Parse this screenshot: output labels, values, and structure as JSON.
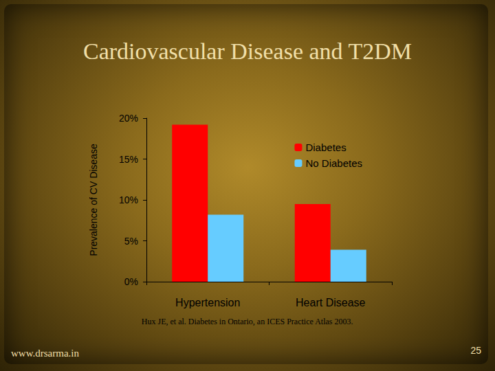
{
  "chart_data": {
    "type": "bar",
    "title": "Cardiovascular Disease and T2DM",
    "ylabel": "Prevalence of CV Disease",
    "categories": [
      "Hypertension",
      "Heart Disease"
    ],
    "series": [
      {
        "name": "Diabetes",
        "color": "#ff0000",
        "values": [
          19.2,
          9.5
        ]
      },
      {
        "name": "No Diabetes",
        "color": "#66ccff",
        "values": [
          8.2,
          3.9
        ]
      }
    ],
    "ylim": [
      0,
      20
    ],
    "yticks": [
      {
        "value": 0,
        "label": "0%"
      },
      {
        "value": 5,
        "label": "5%"
      },
      {
        "value": 10,
        "label": "10%"
      },
      {
        "value": 15,
        "label": "15%"
      },
      {
        "value": 20,
        "label": "20%"
      }
    ],
    "grid": false,
    "legend": "upper right",
    "source": "Hux JE, et al. Diabetes in Ontario, an ICES Practice Atlas 2003.",
    "footer": "www.drsarma.in",
    "page": "25"
  }
}
